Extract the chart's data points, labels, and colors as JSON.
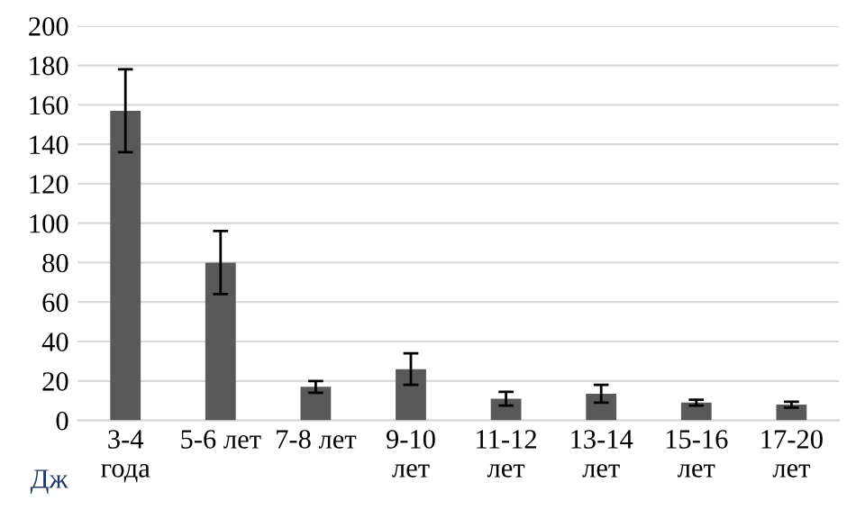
{
  "chart_data": {
    "type": "bar",
    "categories": [
      "3-4\nгода",
      "5-6 лет",
      "7-8 лет",
      "9-10\nлет",
      "11-12\nлет",
      "13-14\nлет",
      "15-16\nлет",
      "17-20\nлет"
    ],
    "values": [
      157,
      80,
      17,
      26,
      11,
      13.5,
      9,
      8
    ],
    "errors": [
      21,
      16,
      3,
      8,
      3.5,
      4.5,
      1.5,
      1.5
    ],
    "color": "#595959",
    "ylim": [
      0,
      200
    ],
    "yticks": [
      0,
      20,
      40,
      60,
      80,
      100,
      120,
      140,
      160,
      180,
      200
    ],
    "grid": "y",
    "annotations": [
      "Дж"
    ]
  }
}
